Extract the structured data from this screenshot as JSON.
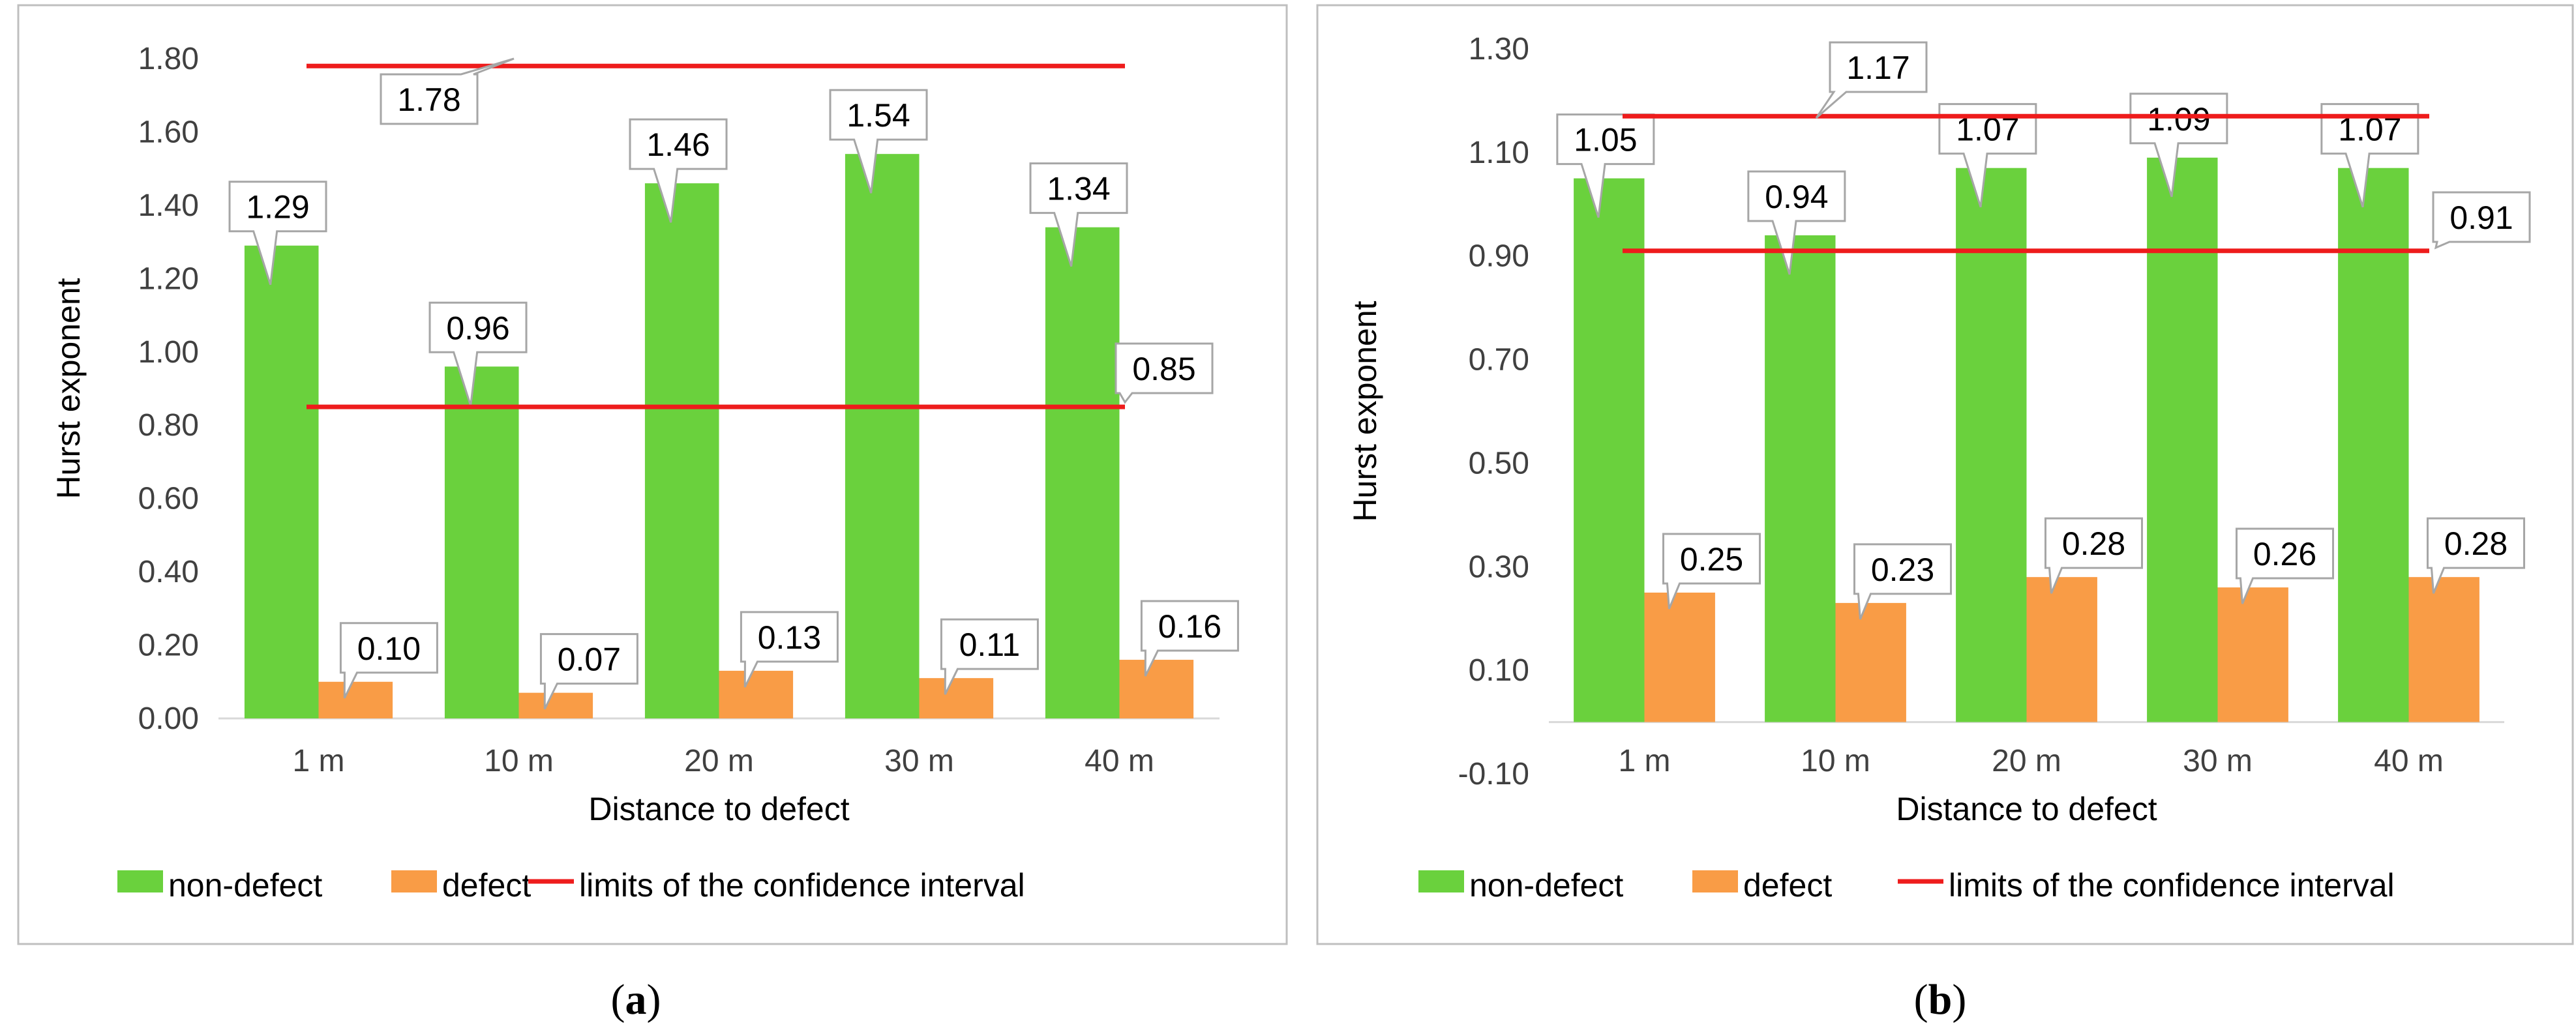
{
  "legend": {
    "non_defect": "non-defect",
    "defect": "defect",
    "limits": "limits of the confidence interval"
  },
  "colors": {
    "non_defect": "#6ad13d",
    "defect": "#f99c46",
    "limits": "#ee1c1c",
    "axis": "#d9d9d9",
    "text": "#404040"
  },
  "chart_data": [
    {
      "type": "bar",
      "caption_open": "(",
      "caption_letter": "a",
      "caption_close": ")",
      "xlabel": "Distance to defect",
      "ylabel": "Hurst exponent",
      "categories": [
        "1 m",
        "10 m",
        "20 m",
        "30 m",
        "40 m"
      ],
      "ylim": [
        0,
        1.8
      ],
      "yticks": [
        "0.00",
        "0.20",
        "0.40",
        "0.60",
        "0.80",
        "1.00",
        "1.20",
        "1.40",
        "1.60",
        "1.80"
      ],
      "series": [
        {
          "name": "non-defect",
          "values": [
            1.29,
            0.96,
            1.46,
            1.54,
            1.34
          ],
          "labels": [
            "1.29",
            "0.96",
            "1.46",
            "1.54",
            "1.34"
          ]
        },
        {
          "name": "defect",
          "values": [
            0.1,
            0.07,
            0.13,
            0.11,
            0.16
          ],
          "labels": [
            "0.10",
            "0.07",
            "0.13",
            "0.11",
            "0.16"
          ]
        }
      ],
      "limits": [
        {
          "value": 1.78,
          "label": "1.78"
        },
        {
          "value": 0.85,
          "label": "0.85"
        }
      ]
    },
    {
      "type": "bar",
      "caption_open": "(",
      "caption_letter": "b",
      "caption_close": ")",
      "xlabel": "Distance to defect",
      "ylabel": "Hurst exponent",
      "categories": [
        "1 m",
        "10 m",
        "20 m",
        "30 m",
        "40 m"
      ],
      "ylim": [
        -0.1,
        1.3
      ],
      "yticks": [
        "-0.10",
        "0.10",
        "0.30",
        "0.50",
        "0.70",
        "0.90",
        "1.10",
        "1.30"
      ],
      "series": [
        {
          "name": "non-defect",
          "values": [
            1.05,
            0.94,
            1.07,
            1.09,
            1.07
          ],
          "labels": [
            "1.05",
            "0.94",
            "1.07",
            "1.09",
            "1.07"
          ]
        },
        {
          "name": "defect",
          "values": [
            0.25,
            0.23,
            0.28,
            0.26,
            0.28
          ],
          "labels": [
            "0.25",
            "0.23",
            "0.28",
            "0.26",
            "0.28"
          ]
        }
      ],
      "limits": [
        {
          "value": 1.17,
          "label": "1.17"
        },
        {
          "value": 0.91,
          "label": "0.91"
        }
      ]
    }
  ]
}
